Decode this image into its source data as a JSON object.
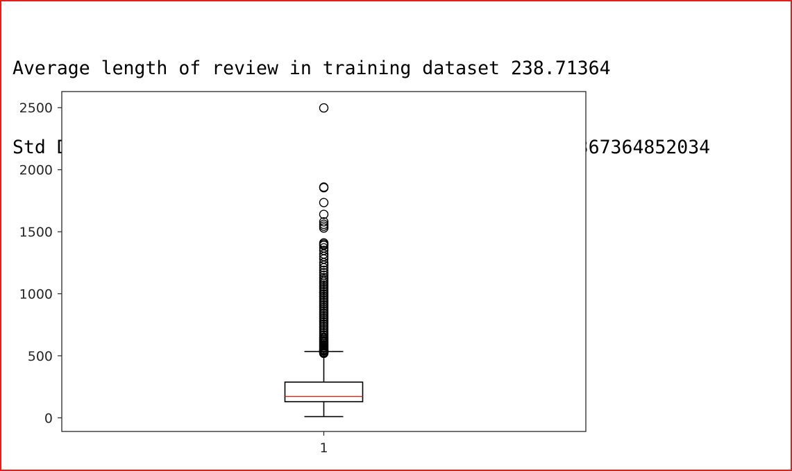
{
  "output": {
    "lines": [
      "Average length of review in training dataset 238.71364",
      "Std Deviation  of review in training dataset 176.49367364852034"
    ]
  },
  "chart_data": {
    "type": "boxplot",
    "title": "",
    "xlabel": "",
    "ylabel": "",
    "categories": [
      "1"
    ],
    "ylim": [
      -110,
      2630
    ],
    "yticks": [
      0,
      500,
      1000,
      1500,
      2000,
      2500
    ],
    "ytick_labels": [
      "0",
      "500",
      "1000",
      "1500",
      "2000",
      "2500"
    ],
    "xtick_labels": [
      "1"
    ],
    "grid": false,
    "box": {
      "whisker_low": 10,
      "q1": 130,
      "median": 172,
      "q3": 288,
      "whisker_high": 535
    },
    "outliers": [
      2498,
      1860,
      1855,
      1735,
      1640,
      1580,
      1560,
      1545,
      1530,
      1410,
      1400,
      1390,
      1370,
      1350,
      1320,
      1300,
      1280,
      1250,
      1230,
      1210,
      1190,
      1170,
      1150,
      1130,
      1115,
      1100,
      1085,
      1070,
      1055,
      1040,
      1025,
      1010,
      995,
      980,
      965,
      950,
      935,
      920,
      905,
      890,
      875,
      860,
      845,
      830,
      815,
      800,
      785,
      770,
      755,
      740,
      725,
      710,
      695,
      680,
      665,
      650,
      640,
      630,
      620,
      610,
      600,
      590,
      580,
      570,
      560,
      550,
      545,
      540,
      530,
      525,
      520
    ],
    "colors": {
      "box": "#000000",
      "median": "#e0201b",
      "axis": "#262626"
    }
  }
}
